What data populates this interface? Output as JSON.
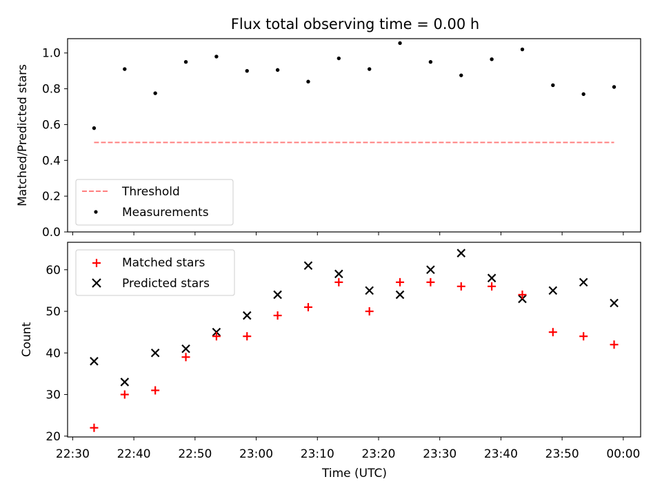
{
  "title": "Flux total observing time = 0.00 h",
  "colors": {
    "threshold": "#ff7f7f",
    "measurement": "#000000",
    "matched": "#ff0000",
    "predicted": "#000000"
  },
  "chart_data": [
    {
      "type": "scatter",
      "title": "Flux total observing time = 0.00 h",
      "xlabel": "",
      "ylabel": "Matched/Predicted stars",
      "ylim": [
        0,
        1.08
      ],
      "yticks": [
        0.0,
        0.2,
        0.4,
        0.6,
        0.8,
        1.0
      ],
      "ytick_labels": [
        "0.0",
        "0.2",
        "0.4",
        "0.6",
        "0.8",
        "1.0"
      ],
      "x": [
        "22:33:30",
        "22:38:30",
        "22:43:30",
        "22:48:30",
        "22:53:30",
        "22:58:30",
        "23:03:30",
        "23:08:30",
        "23:13:30",
        "23:18:30",
        "23:23:30",
        "23:28:30",
        "23:33:30",
        "23:38:30",
        "23:43:30",
        "23:48:30",
        "23:53:30",
        "23:58:30"
      ],
      "series": [
        {
          "name": "Threshold",
          "style": "dashed-line",
          "x_range": [
            "22:33:30",
            "23:58:30"
          ],
          "value": 0.5
        },
        {
          "name": "Measurements",
          "style": "dot",
          "values": [
            0.58,
            0.91,
            0.775,
            0.95,
            0.98,
            0.9,
            0.905,
            0.84,
            0.97,
            0.91,
            1.055,
            0.95,
            0.875,
            0.965,
            1.02,
            0.82,
            0.77,
            0.81
          ]
        }
      ],
      "legend": "lower-left",
      "legend_entries": [
        "Threshold",
        "Measurements"
      ]
    },
    {
      "type": "scatter",
      "xlabel": "Time (UTC)",
      "ylabel": "Count",
      "ylim": [
        19.8,
        66.6
      ],
      "yticks": [
        20,
        30,
        40,
        50,
        60
      ],
      "ytick_labels": [
        "20",
        "30",
        "40",
        "50",
        "60"
      ],
      "xlim": [
        "22:29:10",
        "00:02:50"
      ],
      "xticks": [
        "22:30",
        "22:40",
        "22:50",
        "23:00",
        "23:10",
        "23:20",
        "23:30",
        "23:40",
        "23:50",
        "00:00"
      ],
      "x": [
        "22:33:30",
        "22:38:30",
        "22:43:30",
        "22:48:30",
        "22:53:30",
        "22:58:30",
        "23:03:30",
        "23:08:30",
        "23:13:30",
        "23:18:30",
        "23:23:30",
        "23:28:30",
        "23:33:30",
        "23:38:30",
        "23:43:30",
        "23:48:30",
        "23:53:30",
        "23:58:30"
      ],
      "series": [
        {
          "name": "Matched stars",
          "marker": "plus",
          "values": [
            22,
            30,
            31,
            39,
            44,
            44,
            49,
            51,
            57,
            50,
            57,
            57,
            56,
            56,
            54,
            45,
            44,
            42
          ]
        },
        {
          "name": "Predicted stars",
          "marker": "x",
          "values": [
            38,
            33,
            40,
            41,
            45,
            49,
            54,
            61,
            59,
            55,
            54,
            60,
            64,
            58,
            53,
            55,
            57,
            52
          ]
        }
      ],
      "legend": "upper-left",
      "legend_entries": [
        "Matched stars",
        "Predicted stars"
      ]
    }
  ]
}
